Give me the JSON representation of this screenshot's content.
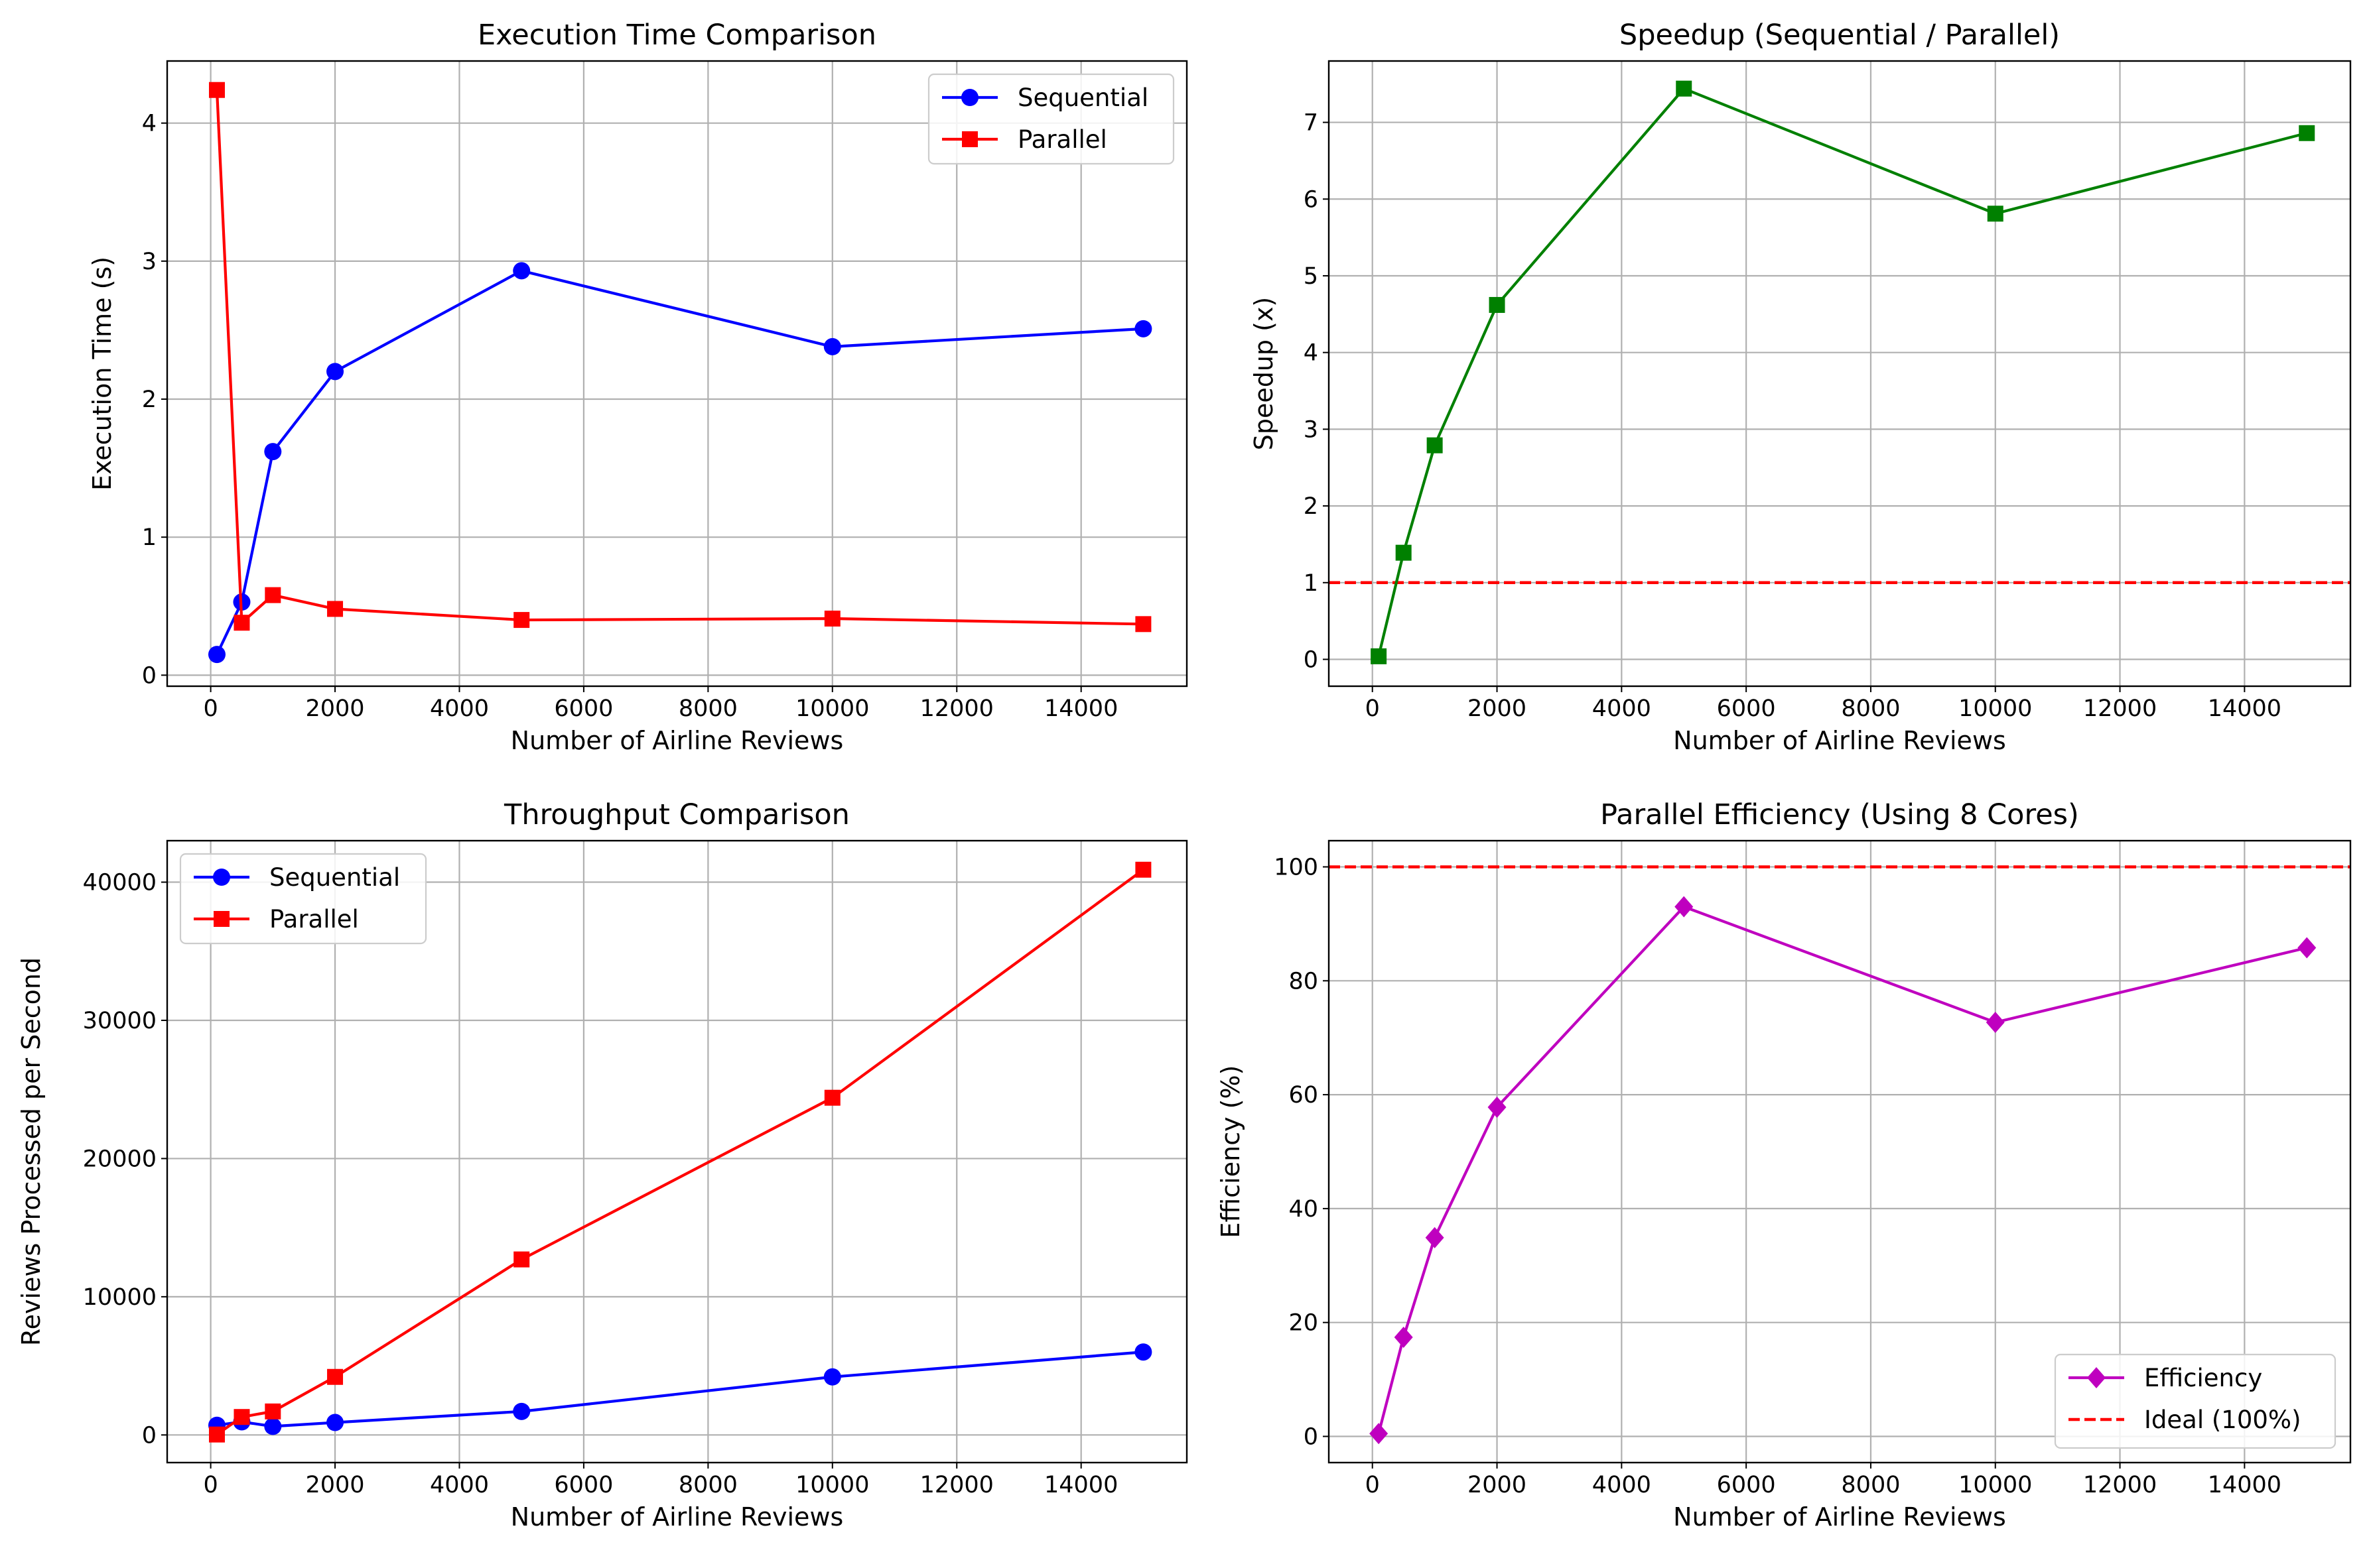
{
  "chart_data": [
    {
      "type": "line",
      "title": "Execution Time Comparison",
      "xlabel": "Number of Airline Reviews",
      "ylabel": "Execution Time (s)",
      "x": [
        100,
        500,
        1000,
        2000,
        5000,
        10000,
        15000
      ],
      "xlim": [
        -700,
        15700
      ],
      "ylim": [
        -0.08,
        4.45
      ],
      "xticks": [
        "0",
        "2000",
        "4000",
        "6000",
        "8000",
        "10000",
        "12000",
        "14000"
      ],
      "yticks": [
        "0",
        "1",
        "2",
        "3",
        "4"
      ],
      "grid": true,
      "legend": "upper right",
      "series": [
        {
          "name": "Sequential",
          "color": "#0000ff",
          "marker": "circle",
          "values": [
            0.15,
            0.53,
            1.62,
            2.2,
            2.93,
            2.38,
            2.51
          ]
        },
        {
          "name": "Parallel",
          "color": "#ff0000",
          "marker": "square",
          "values": [
            4.24,
            0.38,
            0.58,
            0.48,
            0.4,
            0.41,
            0.37
          ]
        }
      ],
      "reference_lines": []
    },
    {
      "type": "line",
      "title": "Speedup (Sequential / Parallel)",
      "xlabel": "Number of Airline Reviews",
      "ylabel": "Speedup (x)",
      "x": [
        100,
        500,
        1000,
        2000,
        5000,
        10000,
        15000
      ],
      "xlim": [
        -700,
        15700
      ],
      "ylim": [
        -0.35,
        7.8
      ],
      "xticks": [
        "0",
        "2000",
        "4000",
        "6000",
        "8000",
        "10000",
        "12000",
        "14000"
      ],
      "yticks": [
        "0",
        "1",
        "2",
        "3",
        "4",
        "5",
        "6",
        "7"
      ],
      "grid": true,
      "legend": "none",
      "series": [
        {
          "name": "",
          "color": "#008000",
          "marker": "square",
          "values": [
            0.04,
            1.39,
            2.79,
            4.62,
            7.44,
            5.81,
            6.86
          ]
        }
      ],
      "reference_lines": [
        {
          "y": 1,
          "color": "#ff0000",
          "style": "dashed",
          "name": ""
        }
      ]
    },
    {
      "type": "line",
      "title": "Throughput Comparison",
      "xlabel": "Number of Airline Reviews",
      "ylabel": "Reviews Processed per Second",
      "x": [
        100,
        500,
        1000,
        2000,
        5000,
        10000,
        15000
      ],
      "xlim": [
        -700,
        15700
      ],
      "ylim": [
        -2000,
        43000
      ],
      "xticks": [
        "0",
        "2000",
        "4000",
        "6000",
        "8000",
        "10000",
        "12000",
        "14000"
      ],
      "yticks": [
        "0",
        "10000",
        "20000",
        "30000",
        "40000"
      ],
      "grid": true,
      "legend": "upper left",
      "series": [
        {
          "name": "Sequential",
          "color": "#0000ff",
          "marker": "circle",
          "values": [
            700,
            950,
            620,
            900,
            1700,
            4200,
            6000
          ]
        },
        {
          "name": "Parallel",
          "color": "#ff0000",
          "marker": "square",
          "values": [
            30,
            1300,
            1700,
            4200,
            12700,
            24400,
            40900
          ]
        }
      ],
      "reference_lines": []
    },
    {
      "type": "line",
      "title": "Parallel Efficiency (Using 8 Cores)",
      "xlabel": "Number of Airline Reviews",
      "ylabel": "Efficiency (%)",
      "x": [
        100,
        500,
        1000,
        2000,
        5000,
        10000,
        15000
      ],
      "xlim": [
        -700,
        15700
      ],
      "ylim": [
        -4.6,
        104.6
      ],
      "xticks": [
        "0",
        "2000",
        "4000",
        "6000",
        "8000",
        "10000",
        "12000",
        "14000"
      ],
      "yticks": [
        "0",
        "20",
        "40",
        "60",
        "80",
        "100"
      ],
      "grid": true,
      "legend": "lower right",
      "series": [
        {
          "name": "Efficiency",
          "color": "#bf00bf",
          "marker": "diamond",
          "values": [
            0.5,
            17.4,
            34.9,
            57.8,
            93.0,
            72.7,
            85.8
          ]
        }
      ],
      "reference_lines": [
        {
          "y": 100,
          "color": "#ff0000",
          "style": "dashed",
          "name": "Ideal (100%)"
        }
      ]
    }
  ]
}
